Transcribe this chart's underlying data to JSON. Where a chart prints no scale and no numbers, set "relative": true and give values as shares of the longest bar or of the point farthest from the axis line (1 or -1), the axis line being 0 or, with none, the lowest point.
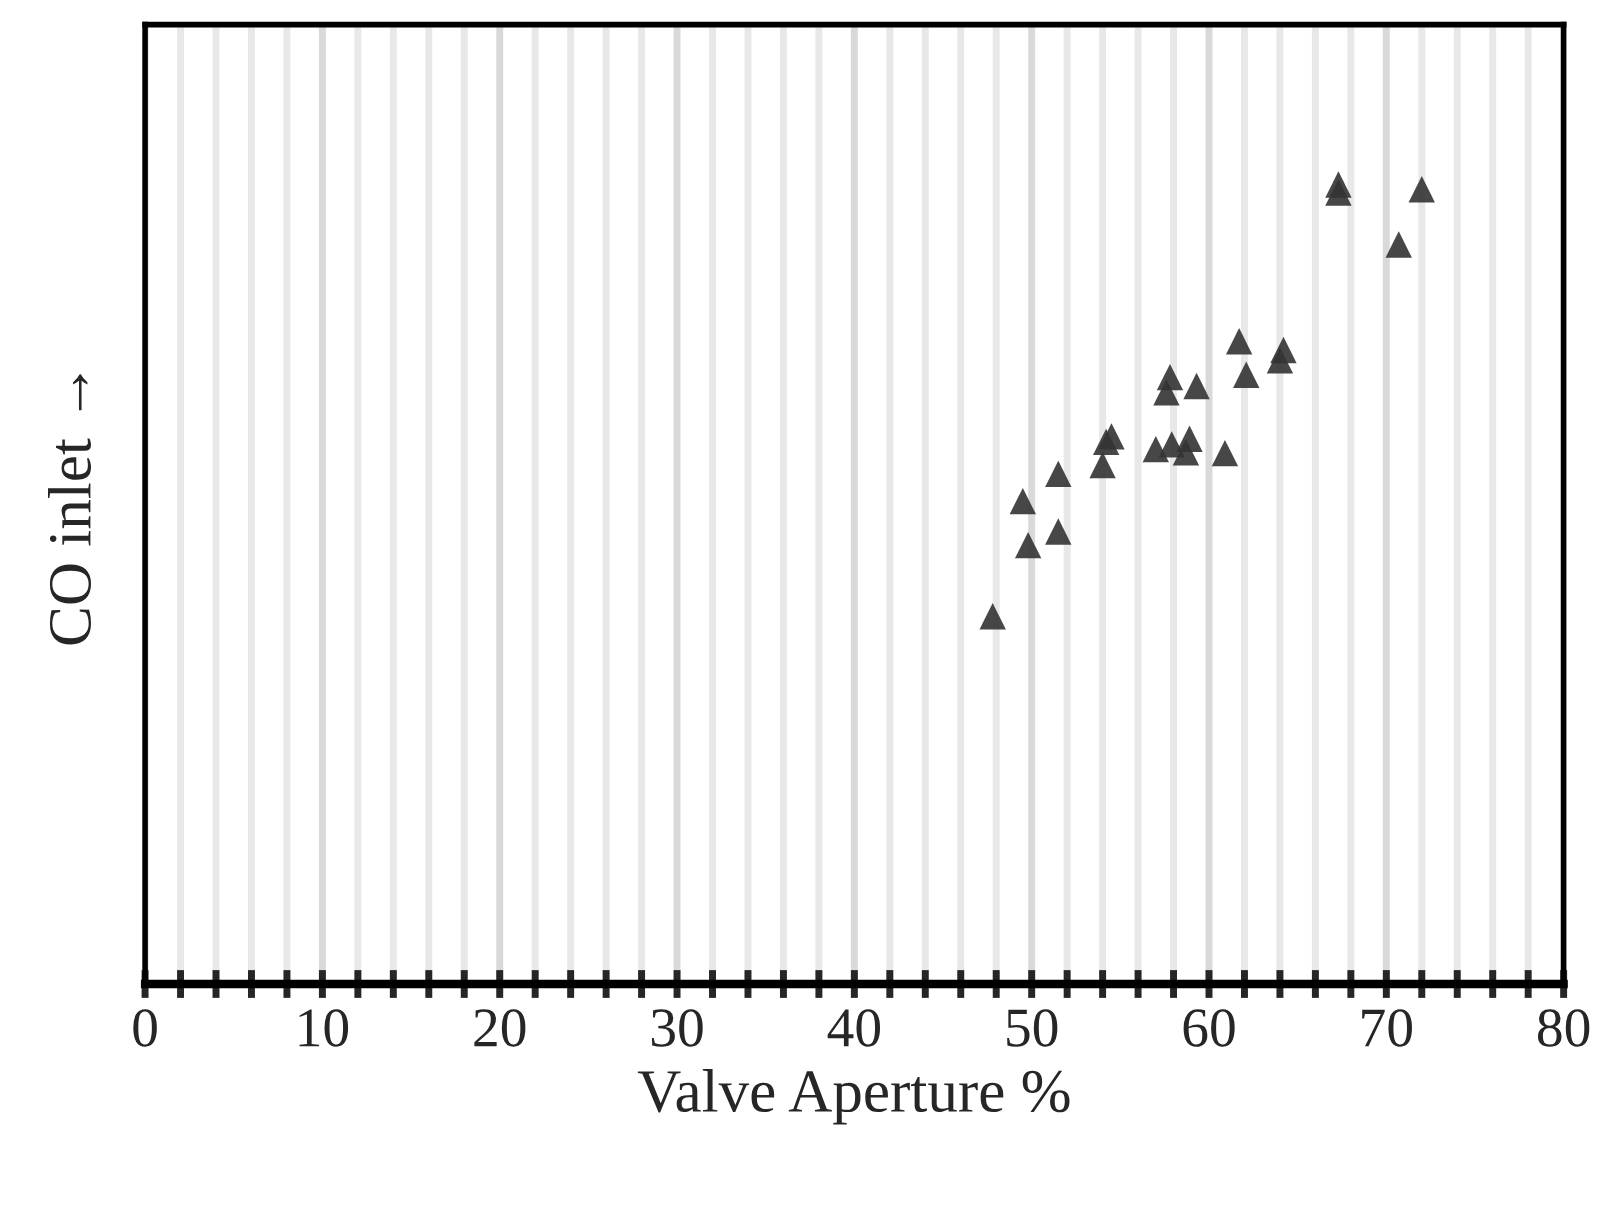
{
  "chart_data": {
    "type": "scatter",
    "xlabel": "Valve Aperture %",
    "ylabel": "CO inlet →",
    "relative": true,
    "xlim": [
      0,
      80
    ],
    "xticks": [
      0,
      {
        "value": 2,
        "label": null
      },
      {
        "value": 4,
        "label": null
      },
      {
        "value": 6,
        "label": null
      },
      {
        "value": 8,
        "label": null
      },
      10,
      {
        "value": 12,
        "label": null
      },
      {
        "value": 14,
        "label": null
      },
      {
        "value": 16,
        "label": null
      },
      {
        "value": 18,
        "label": null
      },
      20,
      {
        "value": 22,
        "label": null
      },
      {
        "value": 24,
        "label": null
      },
      {
        "value": 26,
        "label": null
      },
      {
        "value": 28,
        "label": null
      },
      30,
      {
        "value": 32,
        "label": null
      },
      {
        "value": 34,
        "label": null
      },
      {
        "value": 36,
        "label": null
      },
      {
        "value": 38,
        "label": null
      },
      40,
      {
        "value": 42,
        "label": null
      },
      {
        "value": 44,
        "label": null
      },
      {
        "value": 46,
        "label": null
      },
      {
        "value": 48,
        "label": null
      },
      50,
      {
        "value": 52,
        "label": null
      },
      {
        "value": 54,
        "label": null
      },
      {
        "value": 56,
        "label": null
      },
      {
        "value": 58,
        "label": null
      },
      60,
      {
        "value": 62,
        "label": null
      },
      {
        "value": 64,
        "label": null
      },
      {
        "value": 66,
        "label": null
      },
      {
        "value": 68,
        "label": null
      },
      70,
      {
        "value": 72,
        "label": null
      },
      {
        "value": 74,
        "label": null
      },
      {
        "value": 76,
        "label": null
      },
      {
        "value": 78,
        "label": null
      },
      80
    ],
    "grid": "x",
    "marker": "triangle",
    "tick_labels": "x",
    "series": [
      {
        "color": "#333333",
        "x": [
          47.8,
          49.5,
          49.8,
          51.5,
          51.5,
          54.0,
          54.2,
          54.5,
          57.0,
          57.6,
          57.8,
          57.9,
          58.7,
          58.9,
          59.3,
          60.9,
          61.7,
          62.1,
          64.0,
          64.2,
          67.3,
          67.3,
          70.7,
          72.0
        ],
        "values": [
          0.46,
          0.604,
          0.549,
          0.638,
          0.566,
          0.649,
          0.678,
          0.685,
          0.669,
          0.74,
          0.759,
          0.675,
          0.665,
          0.682,
          0.748,
          0.664,
          0.804,
          0.762,
          0.78,
          0.793,
          0.99,
          1.0,
          0.925,
          0.994
        ]
      }
    ]
  }
}
